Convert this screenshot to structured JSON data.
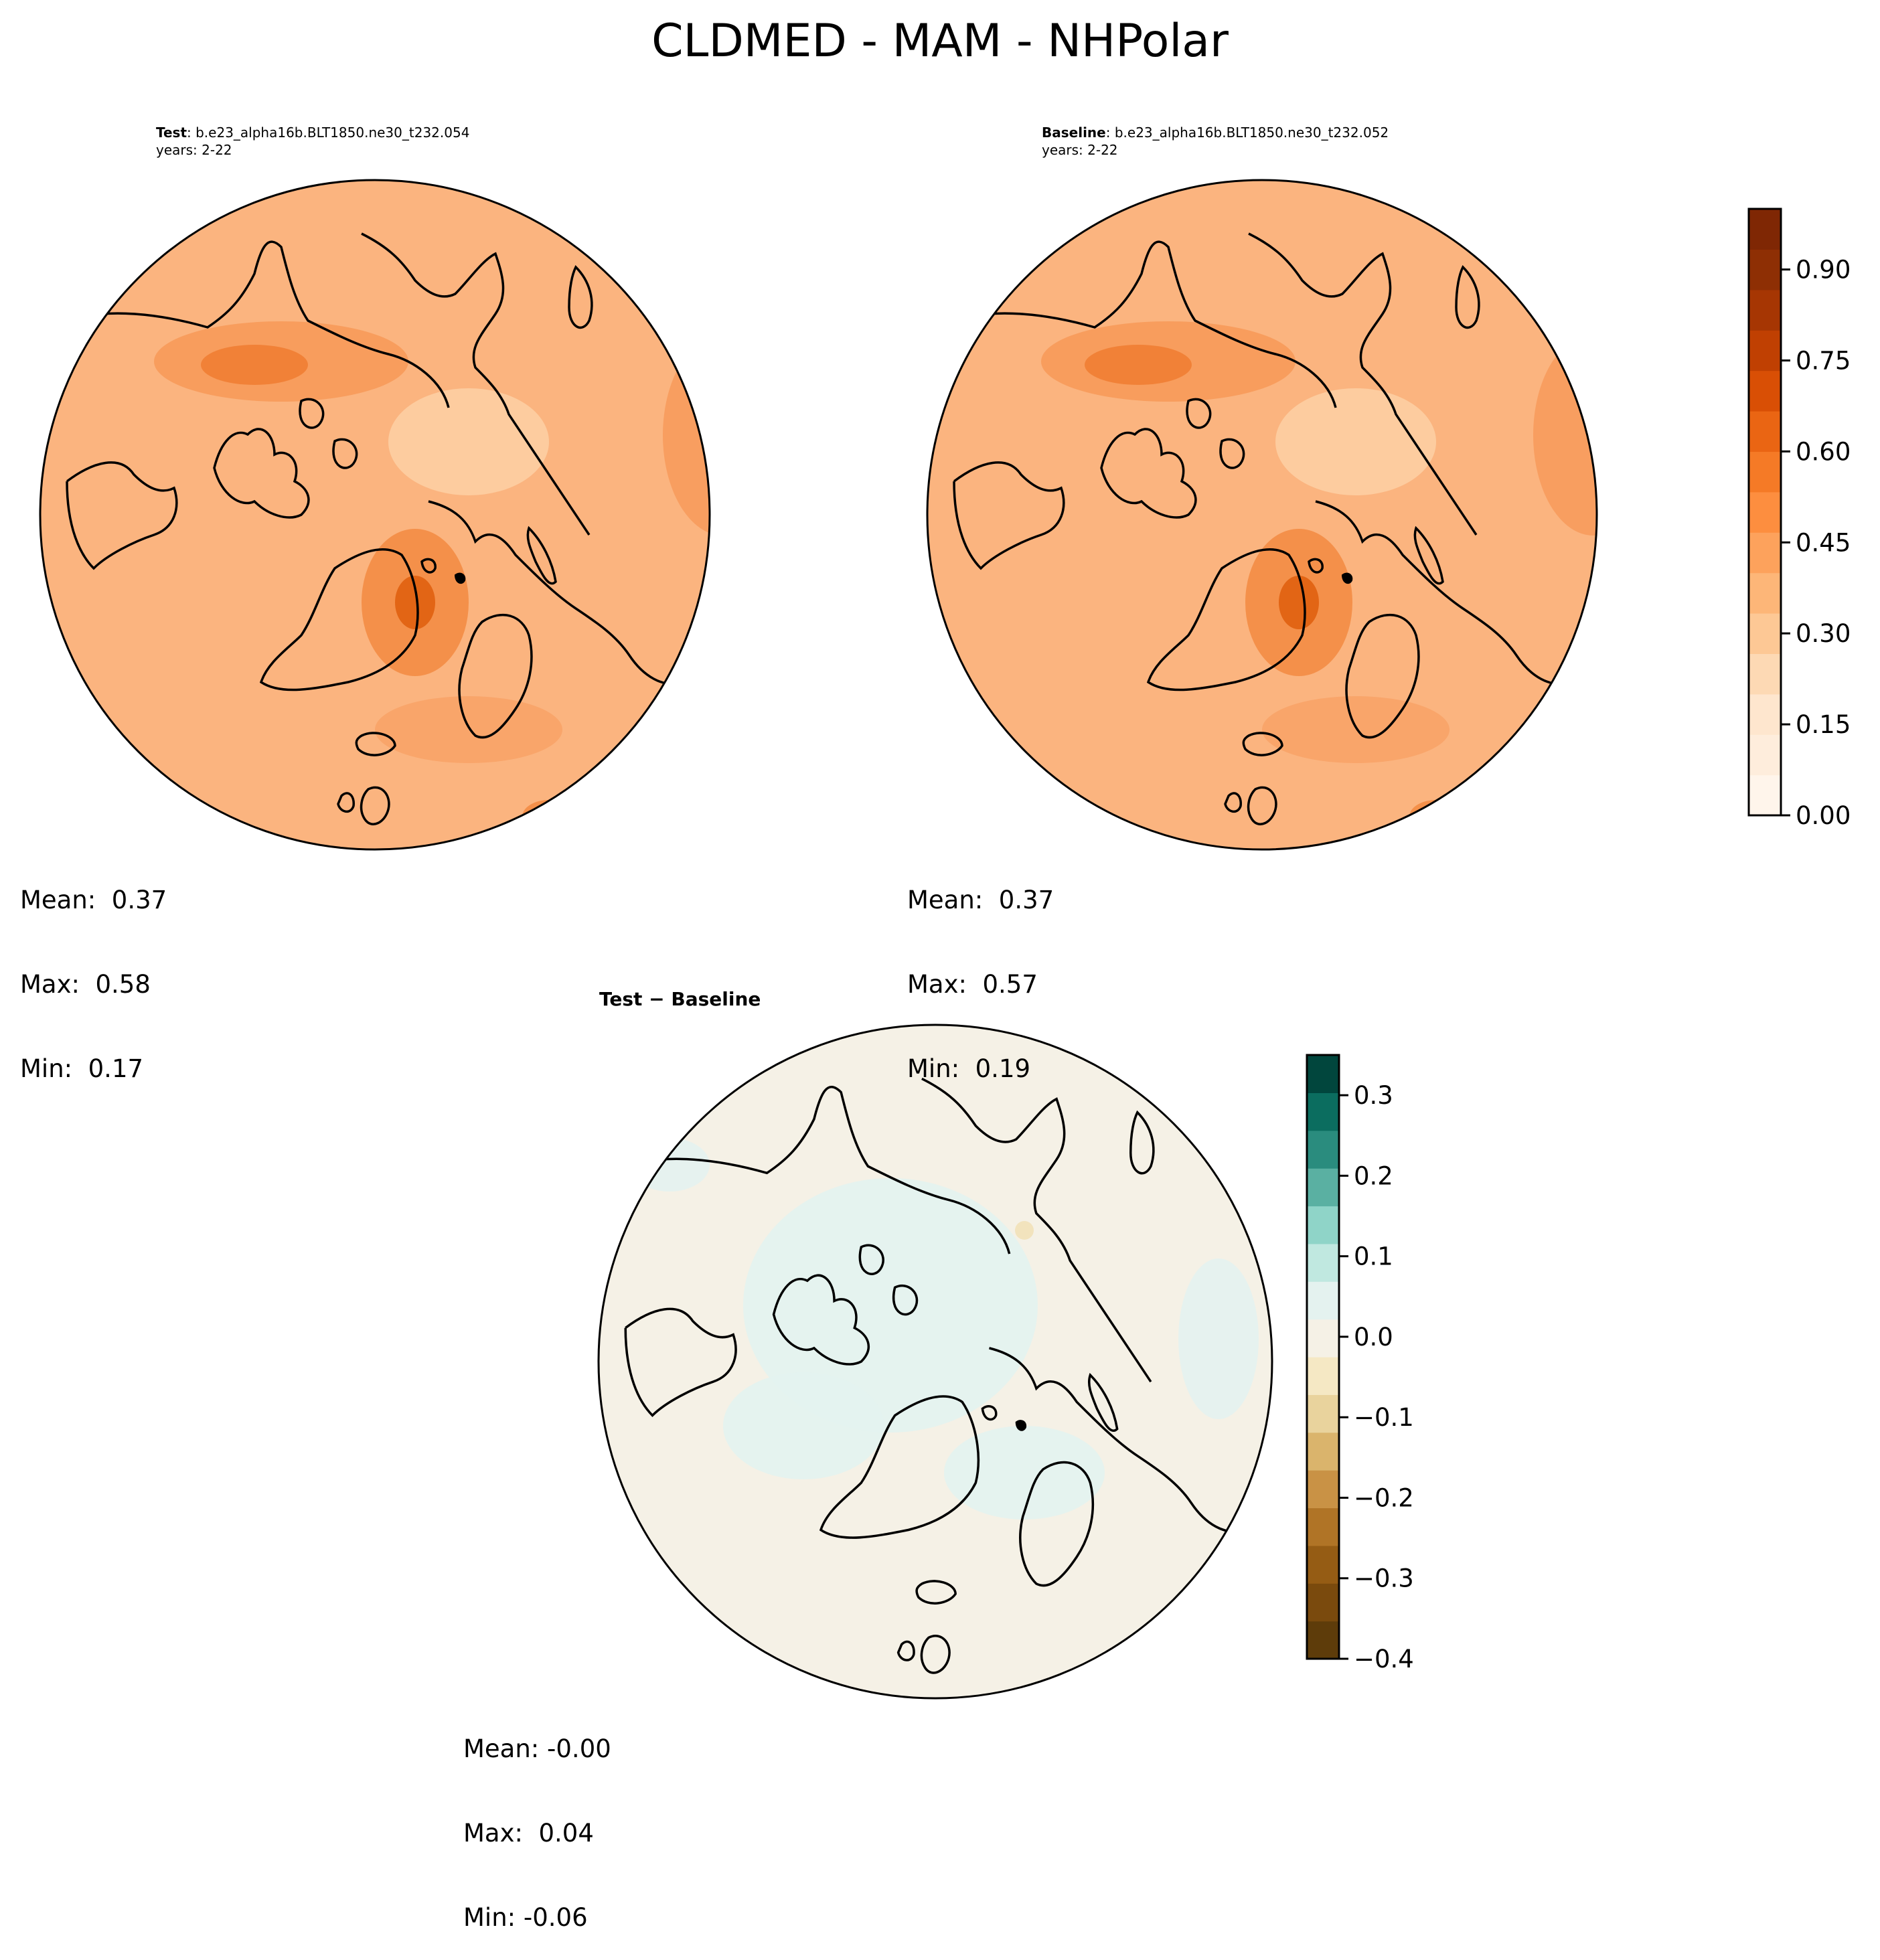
{
  "title": "CLDMED - MAM - NHPolar",
  "panels": [
    {
      "id": "test",
      "label": "Test",
      "case": ": b.e23_alpha16b.BLT1850.ne30_t232.054",
      "years": "years: 2-22",
      "stats": {
        "mean": "Mean:  0.37",
        "max": "Max:  0.58",
        "min": "Min:  0.17"
      },
      "base_color": "#fbb47f"
    },
    {
      "id": "baseline",
      "label": "Baseline",
      "case": ": b.e23_alpha16b.BLT1850.ne30_t232.052",
      "years": "years: 2-22",
      "stats": {
        "mean": "Mean:  0.37",
        "max": "Max:  0.57",
        "min": "Min:  0.19"
      },
      "base_color": "#fbb47f"
    },
    {
      "id": "diff",
      "label": "Test − Baseline",
      "stats": {
        "mean": "Mean: -0.00",
        "max": "Max:  0.04",
        "min": "Min: -0.06"
      },
      "base_color": "#f5f1e6"
    }
  ],
  "colorbars": {
    "main": {
      "ticks": [
        "0.00",
        "0.15",
        "0.30",
        "0.45",
        "0.60",
        "0.75",
        "0.90"
      ],
      "tick_values": [
        0.0,
        0.15,
        0.3,
        0.45,
        0.6,
        0.75,
        0.9
      ],
      "range": [
        0.0,
        1.0
      ],
      "colors": [
        "#fff5eb",
        "#feeddc",
        "#fee6ce",
        "#fdd9b4",
        "#fdc895",
        "#fdb678",
        "#fda25c",
        "#fd8e3f",
        "#f57a26",
        "#ea6513",
        "#d94f05",
        "#c04002",
        "#a63603",
        "#8e2f04",
        "#7f2704"
      ]
    },
    "diff": {
      "ticks": [
        "0.3",
        "0.2",
        "0.1",
        "0.0",
        "−0.1",
        "−0.2",
        "−0.3",
        "−0.4"
      ],
      "tick_values": [
        0.3,
        0.2,
        0.1,
        0.0,
        -0.1,
        -0.2,
        -0.3,
        -0.4
      ],
      "range": [
        -0.4,
        0.35
      ],
      "colors": [
        "#5e3c0a",
        "#7a4a0d",
        "#955c14",
        "#b07426",
        "#c99245",
        "#dab46c",
        "#e9d39d",
        "#f5e8c4",
        "#f5f1e6",
        "#e4f2ef",
        "#c0e8e0",
        "#8fd4c8",
        "#5ab0a2",
        "#2a8c7e",
        "#0b6d5f",
        "#01463d"
      ]
    }
  },
  "map_features": [
    "coastlines"
  ]
}
